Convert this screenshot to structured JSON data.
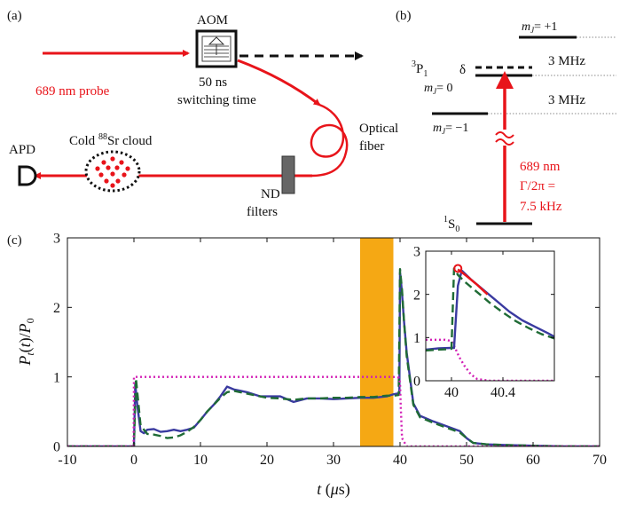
{
  "panels": {
    "a": {
      "label": "(a)",
      "aom_label": "AOM",
      "aom_time_1": "50 ns",
      "aom_time_2": "switching time",
      "probe_label": "689 nm probe",
      "fiber_label_1": "Optical",
      "fiber_label_2": "fiber",
      "cloud_label_prefix": "Cold ",
      "cloud_isotope": "88",
      "cloud_label_suffix": "Sr cloud",
      "apd_label": "APD",
      "nd_label_1": "ND",
      "nd_label_2": "filters"
    },
    "b": {
      "label": "(b)",
      "state_upper_sup": "3",
      "state_upper_main": "P",
      "state_upper_sub": "1",
      "state_lower_sup": "1",
      "state_lower_main": "S",
      "state_lower_sub": "0",
      "mj_plus": "= +1",
      "mj_zero": "= 0",
      "mj_minus": "= −1",
      "mj_m": "m",
      "mj_j": "J",
      "delta": "δ",
      "split_1": "3 MHz",
      "split_2": "3 MHz",
      "wavelength": "689 nm",
      "linewidth_1": "Γ/2π =",
      "linewidth_2": "7.5 kHz"
    },
    "c": {
      "label": "(c)"
    }
  },
  "colors": {
    "red": "#e8141a",
    "blue": "#3a3aa0",
    "green": "#1f6b35",
    "magenta": "#d21fb5",
    "orange": "#f5a814",
    "black": "#111111"
  },
  "chart_data": [
    {
      "type": "line",
      "xlabel": "t (μs)",
      "ylabel": "P_t(t)/P_0",
      "xlabel_parts": [
        "t",
        "(",
        "μ",
        "s)"
      ],
      "ylabel_parts": [
        "P",
        "t",
        "(",
        "t",
        ")/",
        "P",
        "0"
      ],
      "xlim": [
        -10,
        70
      ],
      "ylim": [
        0,
        3
      ],
      "x_ticks": [
        -10,
        0,
        10,
        20,
        30,
        40,
        50,
        60,
        70
      ],
      "y_ticks": [
        0,
        1,
        2,
        3
      ],
      "highlight_band": [
        34,
        39
      ],
      "series": [
        {
          "style": "solid",
          "color_key": "blue",
          "x": [
            -10,
            -0.1,
            0,
            0.2,
            0.5,
            1,
            1.5,
            2,
            3,
            4,
            5,
            6,
            7,
            8,
            9,
            10,
            11,
            12,
            13,
            14,
            15,
            16,
            17,
            18,
            19,
            20,
            22,
            24,
            26,
            28,
            30,
            32,
            34,
            36,
            38,
            39,
            39.6,
            39.9,
            40.0,
            40.1,
            40.3,
            40.6,
            41,
            42,
            43,
            45,
            47,
            49,
            50,
            51,
            53,
            56,
            60,
            65,
            70
          ],
          "y": [
            0,
            0,
            0,
            0.9,
            0.6,
            0.22,
            0.19,
            0.24,
            0.25,
            0.21,
            0.22,
            0.24,
            0.22,
            0.24,
            0.27,
            0.38,
            0.5,
            0.6,
            0.72,
            0.86,
            0.82,
            0.8,
            0.78,
            0.75,
            0.72,
            0.72,
            0.72,
            0.64,
            0.69,
            0.69,
            0.68,
            0.69,
            0.7,
            0.7,
            0.72,
            0.75,
            0.76,
            0.76,
            2.5,
            2.42,
            2.2,
            1.8,
            1.35,
            0.62,
            0.44,
            0.36,
            0.29,
            0.22,
            0.12,
            0.05,
            0.03,
            0.02,
            0.01,
            0,
            0
          ]
        },
        {
          "style": "dashed",
          "color_key": "green",
          "x": [
            -10,
            -0.1,
            0,
            0.3,
            1,
            2,
            3,
            4,
            5,
            6,
            7,
            8,
            9,
            10,
            11,
            12,
            13,
            14,
            15,
            16,
            18,
            20,
            22,
            24,
            26,
            28,
            30,
            32,
            34,
            36,
            38,
            39,
            39.8,
            40.0,
            40.1,
            40.3,
            40.6,
            41,
            42,
            43,
            45,
            47,
            49,
            50,
            51,
            53,
            56,
            60,
            65,
            70
          ],
          "y": [
            0,
            0,
            0,
            0.98,
            0.3,
            0.18,
            0.17,
            0.15,
            0.12,
            0.13,
            0.16,
            0.21,
            0.28,
            0.38,
            0.5,
            0.6,
            0.7,
            0.78,
            0.8,
            0.78,
            0.74,
            0.7,
            0.69,
            0.67,
            0.69,
            0.69,
            0.7,
            0.7,
            0.71,
            0.71,
            0.73,
            0.73,
            0.74,
            2.55,
            2.45,
            2.25,
            1.8,
            1.3,
            0.6,
            0.42,
            0.34,
            0.27,
            0.2,
            0.12,
            0.05,
            0.03,
            0.02,
            0.01,
            0,
            0
          ]
        },
        {
          "style": "dotted",
          "color_key": "magenta",
          "x": [
            -10,
            -0.05,
            0,
            5,
            10,
            20,
            30,
            39,
            39.8,
            40.0,
            40.1,
            40.3,
            41,
            70
          ],
          "y": [
            0,
            0,
            1.0,
            1.0,
            1.0,
            1.0,
            1.0,
            1.0,
            0.99,
            0.92,
            0.6,
            0.12,
            0,
            0
          ]
        }
      ]
    },
    {
      "type": "line",
      "name": "inset",
      "xlim": [
        39.8,
        40.8
      ],
      "ylim": [
        0,
        3
      ],
      "x_ticks": [
        40,
        40.4
      ],
      "x_tick_labels": [
        "40",
        "40.4"
      ],
      "y_ticks": [
        0,
        1,
        2,
        3
      ],
      "peak_marker": [
        40.05,
        2.6
      ],
      "series": [
        {
          "style": "dotted",
          "color_key": "magenta",
          "x": [
            39.8,
            39.95,
            40.0,
            40.03,
            40.06,
            40.1,
            40.15,
            40.2,
            40.3,
            40.8
          ],
          "y": [
            0.95,
            0.95,
            0.92,
            0.75,
            0.55,
            0.35,
            0.15,
            0.04,
            0,
            0
          ]
        },
        {
          "style": "solid",
          "color_key": "blue",
          "x": [
            39.8,
            39.9,
            40.0,
            40.02,
            40.05,
            40.08,
            40.15,
            40.25,
            40.35,
            40.45,
            40.55,
            40.65,
            40.75,
            40.8
          ],
          "y": [
            0.72,
            0.75,
            0.76,
            0.76,
            2.2,
            2.55,
            2.35,
            2.1,
            1.85,
            1.6,
            1.4,
            1.25,
            1.1,
            1.02
          ]
        },
        {
          "style": "dashed",
          "color_key": "green",
          "x": [
            39.8,
            39.9,
            39.98,
            40.0,
            40.02,
            40.05,
            40.1,
            40.2,
            40.3,
            40.4,
            40.5,
            40.6,
            40.7,
            40.8
          ],
          "y": [
            0.7,
            0.72,
            0.73,
            0.74,
            2.6,
            2.45,
            2.3,
            2.05,
            1.8,
            1.58,
            1.38,
            1.22,
            1.08,
            0.98
          ]
        },
        {
          "style": "solid",
          "color_key": "red",
          "x": [
            40.05,
            40.12,
            40.2,
            40.28
          ],
          "y": [
            2.58,
            2.42,
            2.22,
            2.0
          ]
        }
      ]
    }
  ]
}
